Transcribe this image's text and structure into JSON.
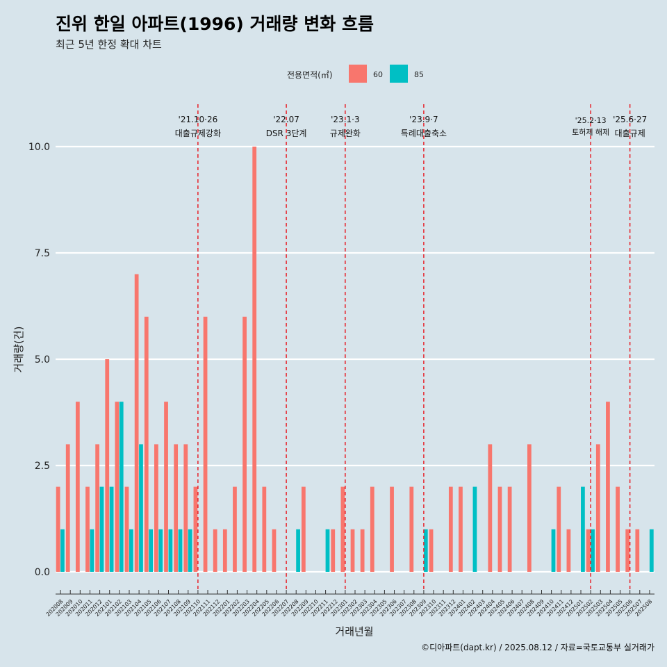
{
  "chart_data": {
    "type": "bar",
    "title": "진위 한일 아파트(1996) 거래량 변화 흐름",
    "subtitle": "최근 5년 한정 확대 차트",
    "xlabel": "거래년월",
    "ylabel": "거래량(건)",
    "ylim": [
      0,
      10.5
    ],
    "yticks": [
      "0.0",
      "2.5",
      "5.0",
      "7.5",
      "10.0"
    ],
    "legend": {
      "title": "전용면적(㎡)",
      "position": "top",
      "items": [
        {
          "name": "60",
          "color": "#f8766d"
        },
        {
          "name": "85",
          "color": "#00bfc4"
        }
      ]
    },
    "categories": [
      "202008",
      "202009",
      "202010",
      "202011",
      "202012",
      "202101",
      "202102",
      "202103",
      "202104",
      "202105",
      "202106",
      "202107",
      "202108",
      "202109",
      "202110",
      "202111",
      "202112",
      "202201",
      "202202",
      "202203",
      "202204",
      "202205",
      "202206",
      "202207",
      "202208",
      "202209",
      "202210",
      "202211",
      "202212",
      "202301",
      "202302",
      "202303",
      "202304",
      "202305",
      "202306",
      "202307",
      "202308",
      "202309",
      "202310",
      "202311",
      "202312",
      "202401",
      "202402",
      "202403",
      "202404",
      "202405",
      "202406",
      "202407",
      "202408",
      "202409",
      "202410",
      "202411",
      "202412",
      "202501",
      "202502",
      "202503",
      "202504",
      "202505",
      "202506",
      "202507",
      "202508"
    ],
    "series": [
      {
        "name": "60",
        "values": [
          2,
          3,
          4,
          2,
          3,
          5,
          4,
          2,
          7,
          6,
          3,
          4,
          3,
          3,
          2,
          6,
          1,
          1,
          2,
          6,
          10,
          2,
          1,
          0,
          0,
          2,
          0,
          0,
          1,
          2,
          1,
          1,
          2,
          0,
          2,
          0,
          2,
          0,
          1,
          0,
          2,
          2,
          0,
          0,
          3,
          2,
          2,
          0,
          3,
          0,
          0,
          2,
          1,
          0,
          1,
          3,
          4,
          2,
          1,
          1,
          0
        ]
      },
      {
        "name": "85",
        "values": [
          1,
          0,
          0,
          1,
          2,
          2,
          4,
          1,
          3,
          1,
          1,
          1,
          1,
          1,
          0,
          0,
          0,
          0,
          0,
          0,
          0,
          0,
          0,
          0,
          1,
          0,
          0,
          1,
          0,
          0,
          0,
          0,
          0,
          0,
          0,
          0,
          0,
          1,
          0,
          0,
          0,
          0,
          2,
          0,
          0,
          0,
          0,
          0,
          0,
          0,
          1,
          0,
          0,
          2,
          1,
          0,
          0,
          0,
          0,
          0,
          1
        ]
      }
    ],
    "events": [
      {
        "date": "'21.10·26",
        "label": "대출규제강화",
        "month": "202110"
      },
      {
        "date": "'22.07",
        "label": "DSR 3단계",
        "month": "202207"
      },
      {
        "date": "'23.1·3",
        "label": "규제완화",
        "month": "202301"
      },
      {
        "date": "'23.9·7",
        "label": "특례대출축소",
        "month": "202309"
      },
      {
        "date": "'25.2·13",
        "label": "토허제 해제",
        "month": "202502"
      },
      {
        "date": "'25.6·27",
        "label": "대출규제",
        "month": "202506"
      }
    ],
    "caption": "©디아파트(dapt.kr) / 2025.08.12 / 자료=국토교통부 실거래가"
  }
}
